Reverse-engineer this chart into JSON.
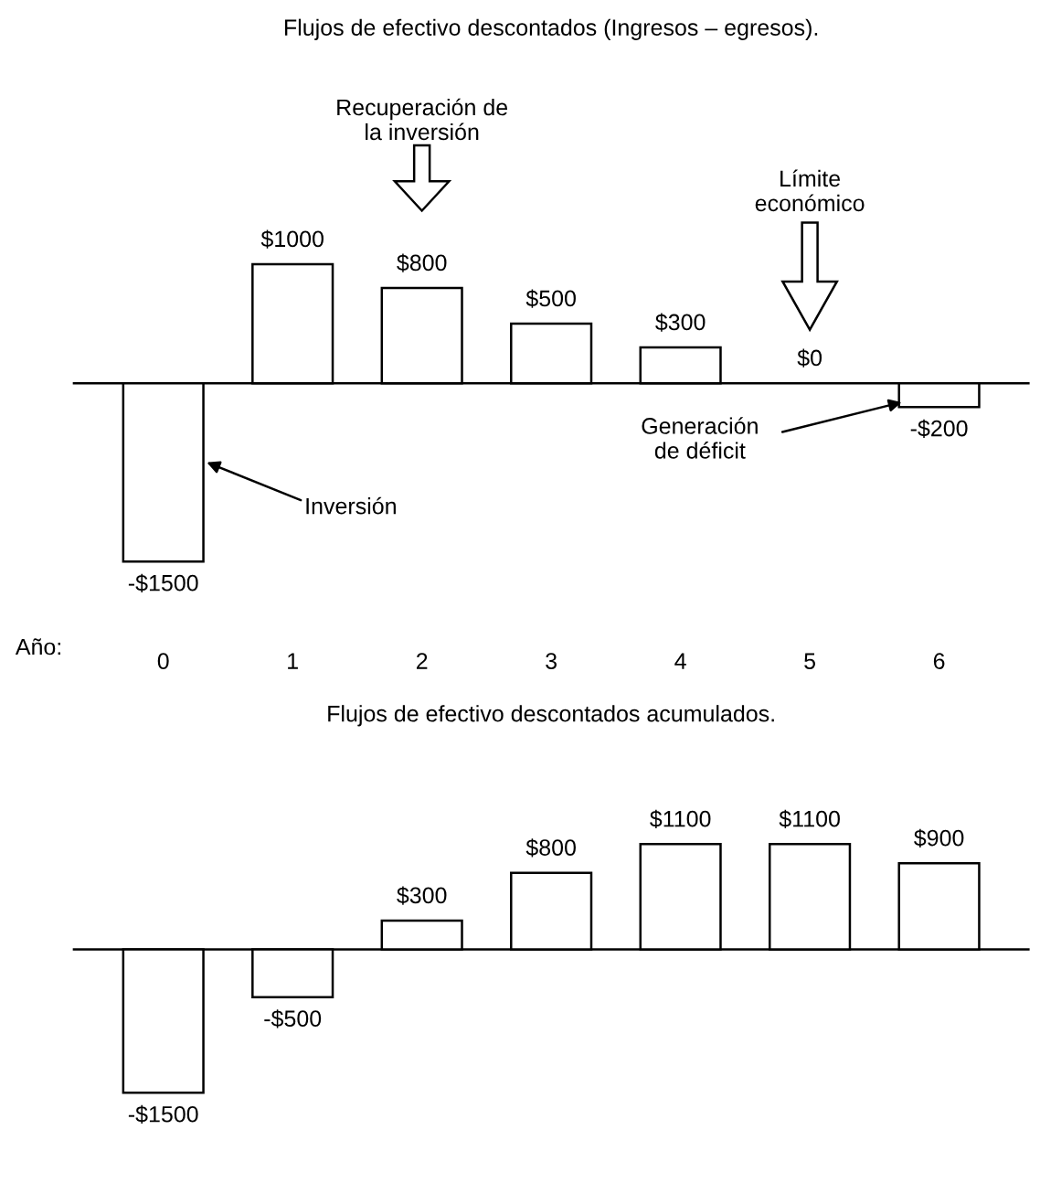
{
  "chart_data": [
    {
      "type": "bar",
      "title": "Flujos de efectivo descontados (Ingresos – egresos).",
      "xlabel": "Año:",
      "categories": [
        "0",
        "1",
        "2",
        "3",
        "4",
        "5",
        "6"
      ],
      "values": [
        -1500,
        1000,
        800,
        500,
        300,
        0,
        -200
      ],
      "value_labels": [
        "-$1500",
        "$1000",
        "$800",
        "$500",
        "$300",
        "$0",
        "-$200"
      ],
      "color": "#ffffff",
      "grid": false,
      "annotations": [
        "Recuperación de\nla inversión",
        "Límite\neconómico",
        "Inversión",
        "Generación\nde déficit"
      ]
    },
    {
      "type": "bar",
      "title": "Flujos de efectivo descontados acumulados.",
      "categories": [
        null,
        null,
        null,
        null,
        null,
        null,
        null
      ],
      "values": [
        -1500,
        -500,
        300,
        800,
        1100,
        1100,
        900
      ],
      "value_labels": [
        "-$1500",
        "-$500",
        "$300",
        "$800",
        "$1100",
        "$1100",
        "$900"
      ],
      "color": "#ffffff",
      "grid": false
    }
  ]
}
